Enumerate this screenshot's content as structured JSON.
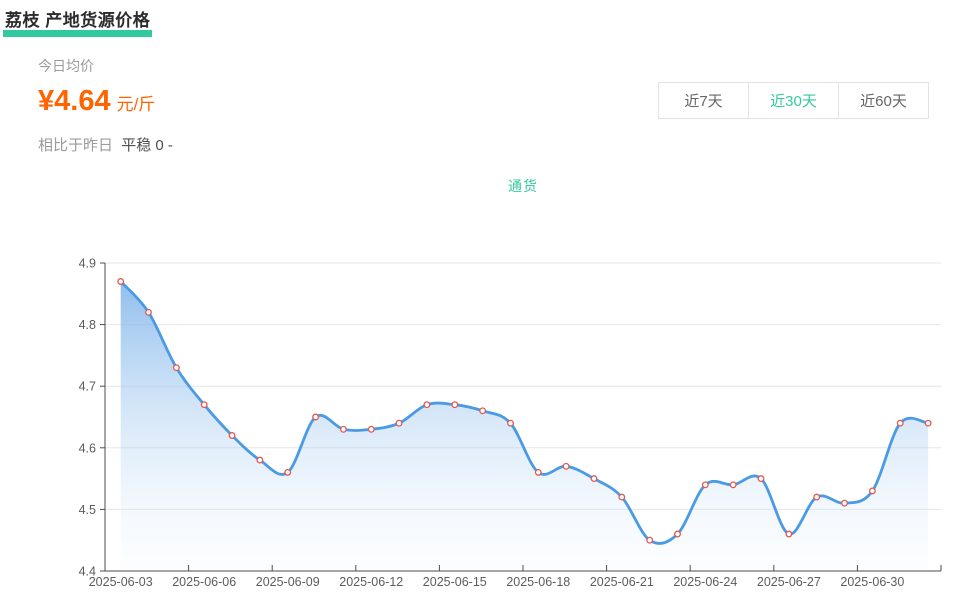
{
  "page": {
    "title": "荔枝 产地货源价格"
  },
  "summary": {
    "avg_label": "今日均价",
    "price": "¥4.64",
    "unit": "元/斤",
    "compare_prefix": "相比于昨日",
    "compare_status": "平稳 0 -"
  },
  "tabs": [
    {
      "label": "近7天",
      "active": false
    },
    {
      "label": "近30天",
      "active": true
    },
    {
      "label": "近60天",
      "active": false
    }
  ],
  "legend": {
    "label": "通货",
    "color": "#35c9a0"
  },
  "colors": {
    "accent": "#33c9a0",
    "price_orange": "#ff6400",
    "line_blue": "#4a9ae4",
    "marker_red": "#e05a50"
  },
  "chart_data": {
    "type": "area",
    "title": "",
    "xlabel": "",
    "ylabel": "",
    "ylim": [
      4.4,
      4.9
    ],
    "y_ticks": [
      4.4,
      4.5,
      4.6,
      4.7,
      4.8,
      4.9
    ],
    "grid": true,
    "legend_position": "top-center",
    "x_tick_labels": [
      "2025-06-03",
      "2025-06-06",
      "2025-06-09",
      "2025-06-12",
      "2025-06-15",
      "2025-06-18",
      "2025-06-21",
      "2025-06-24",
      "2025-06-27",
      "2025-06-30"
    ],
    "series": [
      {
        "name": "通货",
        "x": [
          "2025-06-03",
          "2025-06-04",
          "2025-06-05",
          "2025-06-06",
          "2025-06-07",
          "2025-06-08",
          "2025-06-09",
          "2025-06-10",
          "2025-06-11",
          "2025-06-12",
          "2025-06-13",
          "2025-06-14",
          "2025-06-15",
          "2025-06-16",
          "2025-06-17",
          "2025-06-18",
          "2025-06-19",
          "2025-06-20",
          "2025-06-21",
          "2025-06-22",
          "2025-06-23",
          "2025-06-24",
          "2025-06-25",
          "2025-06-26",
          "2025-06-27",
          "2025-06-28",
          "2025-06-29",
          "2025-06-30",
          "2025-07-01",
          "2025-07-02"
        ],
        "values": [
          4.87,
          4.82,
          4.73,
          4.67,
          4.62,
          4.58,
          4.56,
          4.65,
          4.63,
          4.63,
          4.64,
          4.67,
          4.67,
          4.66,
          4.64,
          4.56,
          4.57,
          4.55,
          4.52,
          4.45,
          4.46,
          4.54,
          4.54,
          4.55,
          4.46,
          4.52,
          4.51,
          4.53,
          4.64,
          4.64
        ]
      }
    ],
    "style": {
      "line_color": "#4a9ae4",
      "line_width": 2.8,
      "marker_fill": "#ffffff",
      "marker_stroke": "#e05a50",
      "area_top_color": "rgba(90,158,229,0.75)",
      "area_bottom_color": "rgba(235,244,252,0.12)",
      "grid_color": "#e6e6e6",
      "axis_color": "#4d4d4d",
      "tick_label_color": "#5c5c5c"
    }
  }
}
